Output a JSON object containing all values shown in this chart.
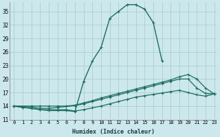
{
  "xlabel": "Humidex (Indice chaleur)",
  "background_color": "#cce8ec",
  "grid_color": "#aacdd4",
  "line_color": "#1a6b60",
  "xlim": [
    -0.5,
    23.3
  ],
  "ylim": [
    11,
    37
  ],
  "yticks": [
    11,
    14,
    17,
    20,
    23,
    26,
    29,
    32,
    35
  ],
  "xticks": [
    0,
    1,
    2,
    3,
    4,
    5,
    6,
    7,
    8,
    9,
    10,
    11,
    12,
    13,
    14,
    15,
    16,
    17,
    18,
    19,
    20,
    21,
    22,
    23
  ],
  "series": [
    {
      "x": [
        0,
        1,
        2,
        3,
        4,
        5,
        6,
        7,
        8,
        9,
        10,
        11,
        12,
        13,
        14,
        15,
        16,
        17
      ],
      "y": [
        14.0,
        13.7,
        13.5,
        13.2,
        13.0,
        13.0,
        13.0,
        12.8,
        19.5,
        24.0,
        27.0,
        33.5,
        35.0,
        36.5,
        36.5,
        35.5,
        32.5,
        24.0
      ]
    },
    {
      "x": [
        0,
        2,
        3,
        4,
        5,
        6,
        7,
        8,
        9,
        10,
        11,
        12,
        13,
        14,
        15,
        16,
        17,
        18,
        19,
        20,
        21,
        22,
        23
      ],
      "y": [
        14.0,
        14.0,
        14.0,
        14.0,
        14.0,
        14.0,
        14.2,
        14.7,
        15.2,
        15.8,
        16.3,
        16.8,
        17.3,
        17.8,
        18.3,
        18.8,
        19.3,
        19.8,
        20.5,
        21.0,
        20.0,
        18.0,
        16.7
      ]
    },
    {
      "x": [
        0,
        2,
        3,
        4,
        5,
        6,
        7,
        8,
        9,
        10,
        11,
        12,
        13,
        14,
        15,
        16,
        17,
        18,
        19,
        20,
        21,
        22,
        23
      ],
      "y": [
        14.0,
        13.8,
        13.5,
        13.5,
        13.7,
        13.9,
        14.1,
        14.5,
        15.0,
        15.5,
        16.0,
        16.5,
        17.0,
        17.5,
        18.0,
        18.5,
        19.0,
        19.5,
        20.0,
        20.0,
        18.0,
        16.8,
        16.7
      ]
    },
    {
      "x": [
        0,
        1,
        2,
        3,
        4,
        5,
        6,
        7,
        8,
        9,
        10,
        11,
        12,
        13,
        14,
        15,
        16,
        17,
        18,
        19,
        20,
        21,
        22,
        23
      ],
      "y": [
        14.0,
        13.7,
        13.5,
        13.2,
        13.2,
        13.2,
        13.2,
        12.9,
        13.2,
        13.6,
        14.0,
        14.5,
        15.0,
        15.5,
        16.0,
        16.3,
        16.6,
        16.9,
        17.2,
        17.5,
        17.0,
        16.5,
        16.2,
        16.7
      ]
    }
  ]
}
